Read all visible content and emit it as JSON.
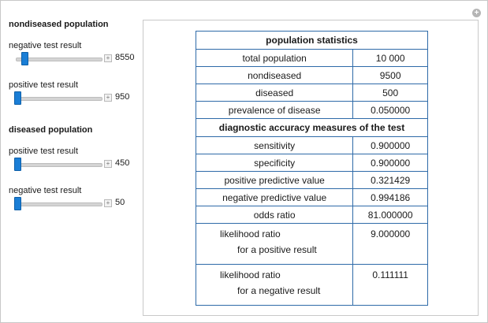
{
  "controls": {
    "nondiseased": {
      "title": "nondiseased population",
      "negative": {
        "label": "negative test result",
        "value": "8550",
        "fraction": 0.07
      },
      "positive": {
        "label": "positive test result",
        "value": "950",
        "fraction": 0.0
      }
    },
    "diseased": {
      "title": "diseased population",
      "positive": {
        "label": "positive test result",
        "value": "450",
        "fraction": 0.0
      },
      "negative": {
        "label": "negative test result",
        "value": "50",
        "fraction": 0.0
      }
    },
    "accent_color": "#1a7ed6"
  },
  "table": {
    "population_header": "population statistics",
    "rows1": [
      {
        "label": "total population",
        "value": "10 000"
      },
      {
        "label": "nondiseased",
        "value": "9500"
      },
      {
        "label": "diseased",
        "value": "500"
      },
      {
        "label": "prevalence of disease",
        "value": "0.050000"
      }
    ],
    "accuracy_header": "diagnostic accuracy measures of the test",
    "rows2": [
      {
        "label": "sensitivity",
        "value": "0.900000"
      },
      {
        "label": "specificity",
        "value": "0.900000"
      },
      {
        "label": "positive predictive value",
        "value": "0.321429"
      },
      {
        "label": "negative predictive value",
        "value": "0.994186"
      },
      {
        "label": "odds ratio",
        "value": "81.000000"
      }
    ],
    "lr_pos": {
      "line1": "likelihood ratio",
      "line2": "for a positive result",
      "value": "9.000000"
    },
    "lr_neg": {
      "line1": "likelihood ratio",
      "line2": "for a negative result",
      "value": "0.111111"
    }
  },
  "icons": {
    "corner": "plus-circle-icon",
    "slider_expand": "plus-box-icon"
  }
}
